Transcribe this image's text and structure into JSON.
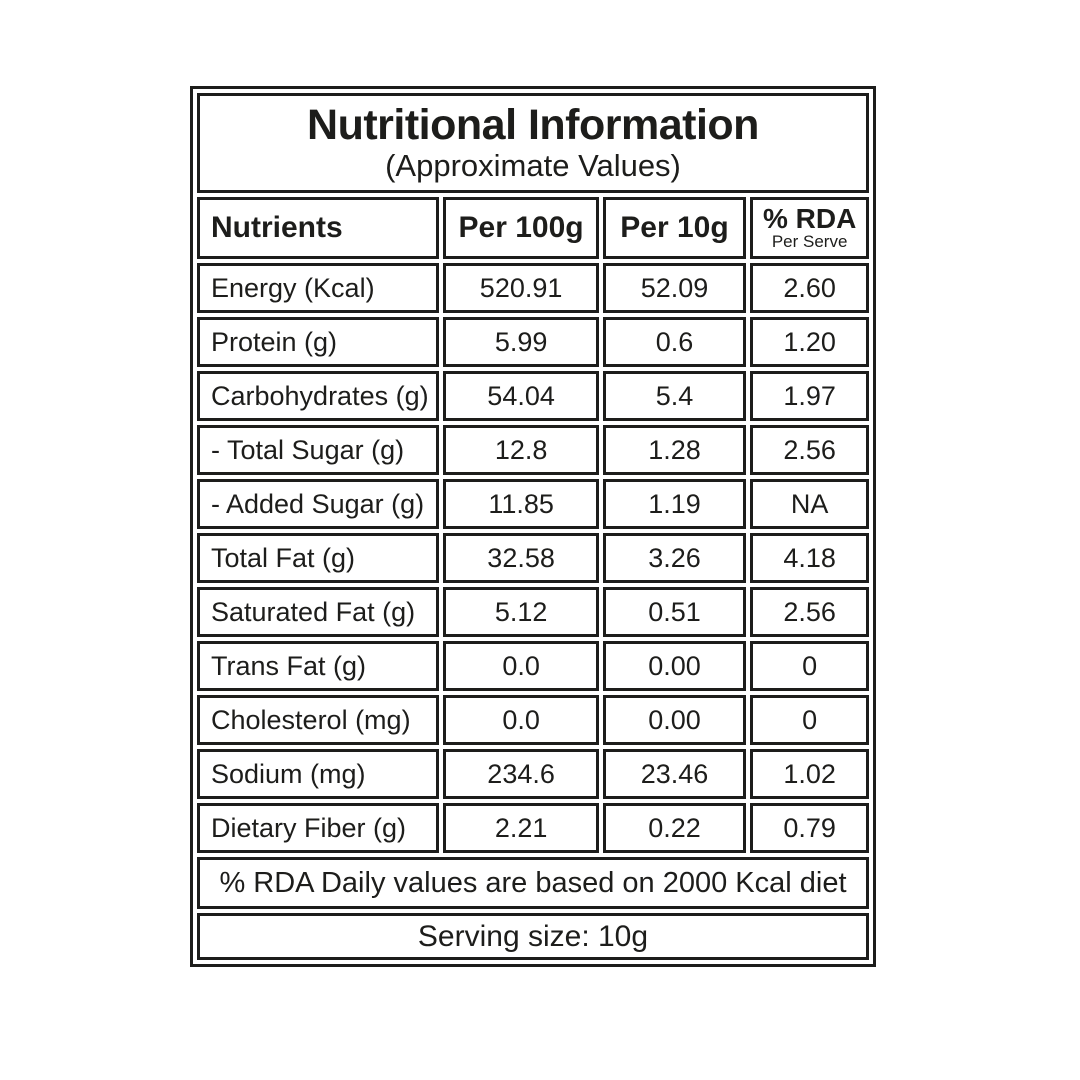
{
  "title": "Nutritional Information",
  "subtitle": "(Approximate Values)",
  "columns": {
    "nutrients": "Nutrients",
    "per_100g": "Per 100g",
    "per_10g": "Per 10g",
    "rda": "% RDA",
    "rda_sub": "Per Serve"
  },
  "rows": [
    {
      "name": "Energy (Kcal)",
      "per_100g": "520.91",
      "per_10g": "52.09",
      "rda": "2.60"
    },
    {
      "name": "Protein (g)",
      "per_100g": "5.99",
      "per_10g": "0.6",
      "rda": "1.20"
    },
    {
      "name": "Carbohydrates (g)",
      "per_100g": "54.04",
      "per_10g": "5.4",
      "rda": "1.97"
    },
    {
      "name": "- Total Sugar (g)",
      "per_100g": "12.8",
      "per_10g": "1.28",
      "rda": "2.56"
    },
    {
      "name": "- Added Sugar (g)",
      "per_100g": "11.85",
      "per_10g": "1.19",
      "rda": "NA"
    },
    {
      "name": "Total Fat (g)",
      "per_100g": "32.58",
      "per_10g": "3.26",
      "rda": "4.18"
    },
    {
      "name": "Saturated Fat (g)",
      "per_100g": "5.12",
      "per_10g": "0.51",
      "rda": "2.56"
    },
    {
      "name": "Trans Fat (g)",
      "per_100g": "0.0",
      "per_10g": "0.00",
      "rda": "0"
    },
    {
      "name": "Cholesterol (mg)",
      "per_100g": "0.0",
      "per_10g": "0.00",
      "rda": "0"
    },
    {
      "name": "Sodium (mg)",
      "per_100g": "234.6",
      "per_10g": "23.46",
      "rda": "1.02"
    },
    {
      "name": "Dietary Fiber (g)",
      "per_100g": "2.21",
      "per_10g": "0.22",
      "rda": "0.79"
    }
  ],
  "footnotes": {
    "rda_note": "% RDA Daily values are based on 2000 Kcal diet",
    "serving_size": "Serving size: 10g"
  },
  "colors": {
    "ink": "#1d1d1b",
    "background": "#ffffff"
  }
}
